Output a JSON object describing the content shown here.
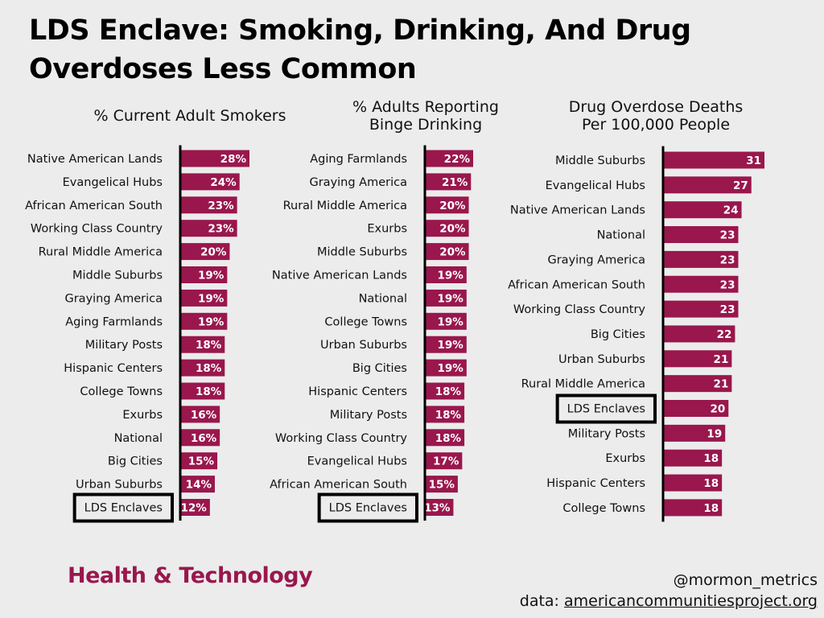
{
  "title_line1": "LDS Enclave: Smoking, Drinking, And Drug",
  "title_line2": "Overdoses Less Common",
  "footer": {
    "brand": "Health & Technology",
    "handle": "@mormon_metrics",
    "source_prefix": "data: ",
    "source_link": "americancommunitiesproject.org"
  },
  "colors": {
    "bar": "#99174d",
    "background": "#ececec",
    "highlight_box": "#000000"
  },
  "chart_data": [
    {
      "type": "bar",
      "orientation": "horizontal",
      "title_lines": [
        "% Current Adult Smokers"
      ],
      "highlight": "LDS Enclaves",
      "value_suffix": "%",
      "xlim": [
        0,
        30
      ],
      "categories": [
        "Native American Lands",
        "Evangelical Hubs",
        "African American South",
        "Working Class Country",
        "Rural Middle America",
        "Middle Suburbs",
        "Graying America",
        "Aging Farmlands",
        "Military Posts",
        "Hispanic Centers",
        "College Towns",
        "Exurbs",
        "National",
        "Big Cities",
        "Urban Suburbs",
        "LDS Enclaves"
      ],
      "values": [
        28,
        24,
        23,
        23,
        20,
        19,
        19,
        19,
        18,
        18,
        18,
        16,
        16,
        15,
        14,
        12
      ]
    },
    {
      "type": "bar",
      "orientation": "horizontal",
      "title_lines": [
        "% Adults Reporting",
        "Binge Drinking"
      ],
      "highlight": "LDS Enclaves",
      "value_suffix": "%",
      "xlim": [
        0,
        30
      ],
      "categories": [
        "Aging Farmlands",
        "Graying America",
        "Rural Middle America",
        "Exurbs",
        "Middle Suburbs",
        "Native American Lands",
        "National",
        "College Towns",
        "Urban Suburbs",
        "Big Cities",
        "Hispanic Centers",
        "Military Posts",
        "Working Class Country",
        "Evangelical Hubs",
        "African American South",
        "LDS Enclaves"
      ],
      "values": [
        22,
        21,
        20,
        20,
        20,
        19,
        19,
        19,
        19,
        19,
        18,
        18,
        18,
        17,
        15,
        13
      ]
    },
    {
      "type": "bar",
      "orientation": "horizontal",
      "title_lines": [
        "Drug Overdose Deaths",
        "Per 100,000 People"
      ],
      "highlight": "LDS Enclaves",
      "value_suffix": "",
      "xlim": [
        0,
        33
      ],
      "categories": [
        "Middle Suburbs",
        "Evangelical Hubs",
        "Native American Lands",
        "National",
        "Graying America",
        "African American South",
        "Working Class Country",
        "Big Cities",
        "Urban Suburbs",
        "Rural Middle America",
        "LDS Enclaves",
        "Military Posts",
        "Exurbs",
        "Hispanic Centers",
        "College Towns"
      ],
      "values": [
        31,
        27,
        24,
        23,
        23,
        23,
        23,
        22,
        21,
        21,
        20,
        19,
        18,
        18,
        18
      ]
    }
  ]
}
